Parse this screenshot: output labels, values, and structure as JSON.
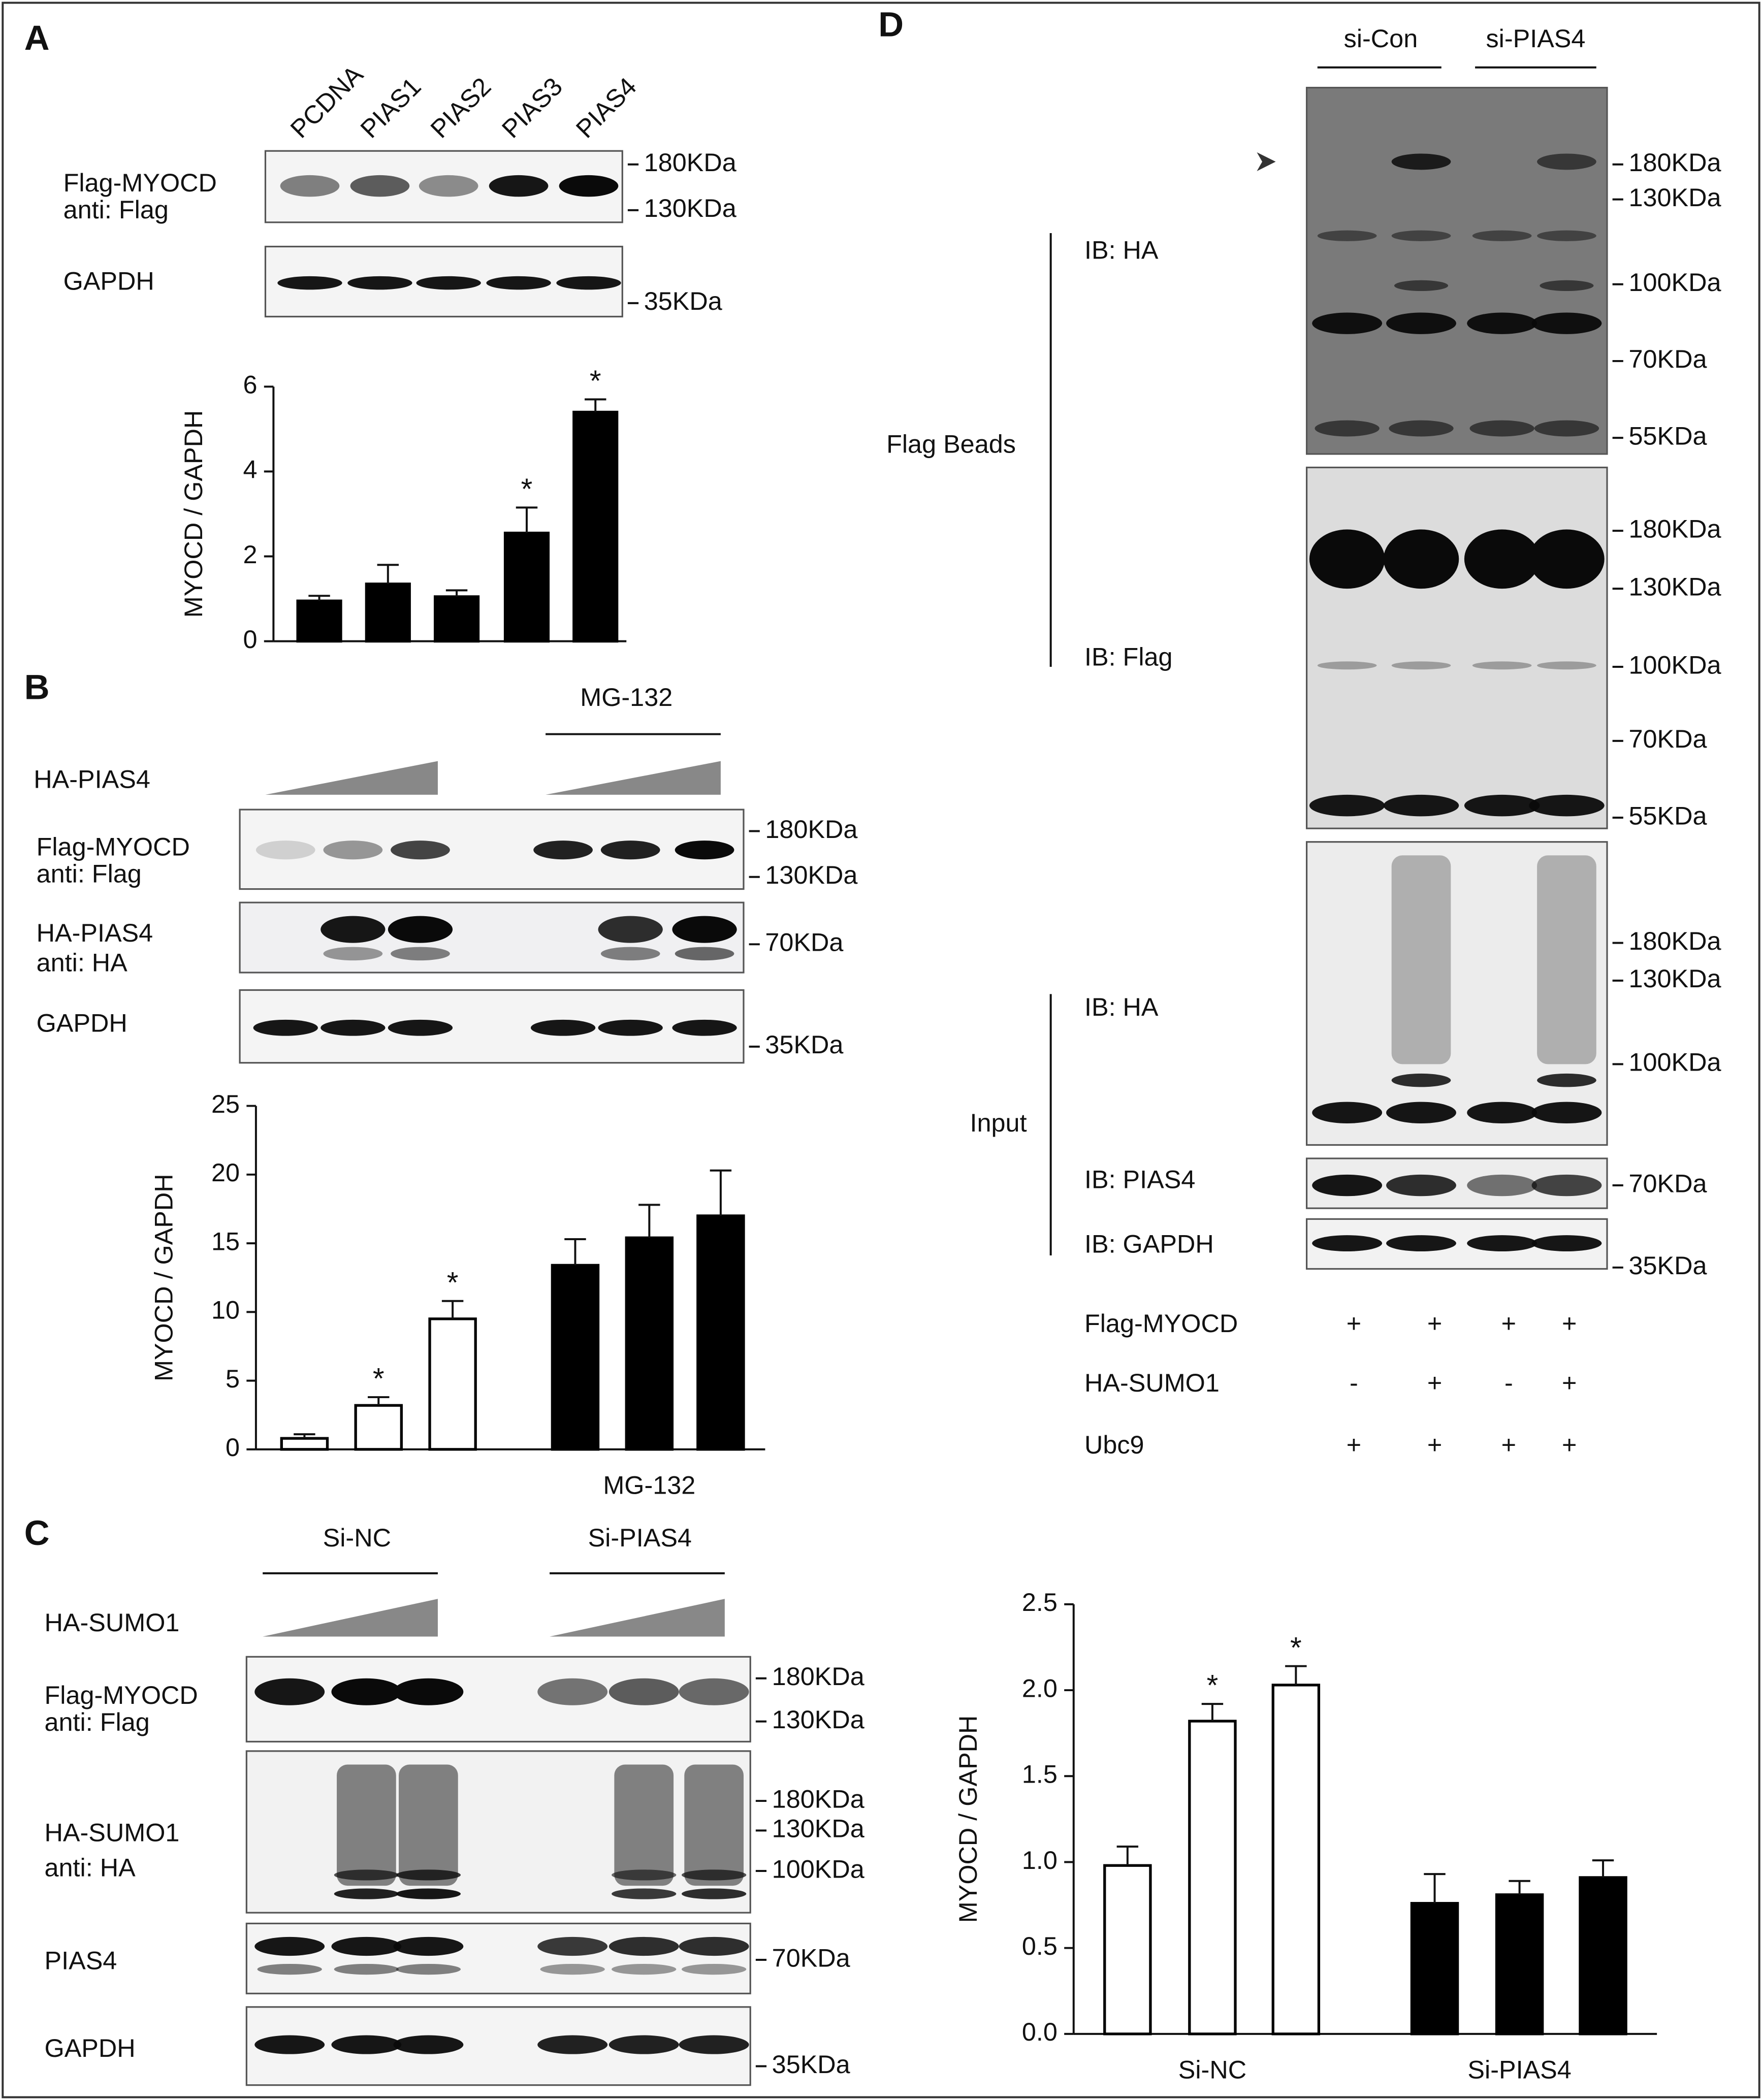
{
  "panel_labels": [
    "A",
    "B",
    "C",
    "D"
  ],
  "panel_a": {
    "lanes": [
      "PCDNA",
      "PIAS1",
      "PIAS2",
      "PIAS3",
      "PIAS4"
    ],
    "blots": [
      {
        "labels": [
          "Flag-MYOCD",
          "anti: Flag"
        ],
        "markers": [
          "180KDa",
          "130KDa"
        ]
      },
      {
        "labels": [
          "GAPDH"
        ],
        "markers": [
          "35KDa"
        ]
      }
    ]
  },
  "panel_b": {
    "treatment": "MG-132",
    "titration": "HA-PIAS4",
    "blots": [
      {
        "labels": [
          "Flag-MYOCD",
          "anti: Flag"
        ],
        "markers": [
          "180KDa",
          "130KDa"
        ]
      },
      {
        "labels": [
          "HA-PIAS4",
          "anti: HA"
        ],
        "markers": [
          "70KDa"
        ]
      },
      {
        "labels": [
          "GAPDH"
        ],
        "markers": [
          "35KDa"
        ]
      }
    ]
  },
  "panel_c": {
    "groups": [
      "Si-NC",
      "Si-PIAS4"
    ],
    "titration": "HA-SUMO1",
    "blots": [
      {
        "labels": [
          "Flag-MYOCD",
          "anti: Flag"
        ],
        "markers": [
          "180KDa",
          "130KDa"
        ]
      },
      {
        "labels": [
          "HA-SUMO1",
          "anti: HA"
        ],
        "markers": [
          "180KDa",
          "130KDa",
          "100KDa"
        ]
      },
      {
        "labels": [
          "PIAS4"
        ],
        "markers": [
          "70KDa"
        ]
      },
      {
        "labels": [
          "GAPDH"
        ],
        "markers": [
          "35KDa"
        ]
      }
    ]
  },
  "panel_d": {
    "groups": [
      "si-Con",
      "si-PIAS4"
    ],
    "sections": [
      "Flag Beads",
      "Input"
    ],
    "blots": [
      {
        "labels": [
          "IB: HA"
        ],
        "markers": [
          "180KDa",
          "130KDa",
          "100KDa",
          "70KDa",
          "55KDa"
        ]
      },
      {
        "labels": [
          "IB: Flag"
        ],
        "markers": [
          "180KDa",
          "130KDa",
          "100KDa",
          "70KDa",
          "55KDa"
        ]
      },
      {
        "labels": [
          "IB: HA"
        ],
        "markers": [
          "180KDa",
          "130KDa",
          "100KDa"
        ]
      },
      {
        "labels": [
          "IB: PIAS4"
        ],
        "markers": [
          "70KDa"
        ]
      },
      {
        "labels": [
          "IB: GAPDH"
        ],
        "markers": [
          "35KDa"
        ]
      }
    ],
    "conditions": [
      {
        "label": "Flag-MYOCD",
        "signs": [
          "+",
          "+",
          "+",
          "+"
        ]
      },
      {
        "label": "HA-SUMO1",
        "signs": [
          "-",
          "+",
          "-",
          "+"
        ]
      },
      {
        "label": "Ubc9",
        "signs": [
          "+",
          "+",
          "+",
          "+"
        ]
      }
    ]
  },
  "chart_data": [
    {
      "type": "bar",
      "y_label": "MYOCD / GAPDH",
      "values": [
        0.95,
        1.35,
        1.05,
        2.55,
        5.4
      ],
      "errors": [
        0.12,
        0.45,
        0.15,
        0.6,
        0.3
      ],
      "colors": [
        "#000000",
        "#000000",
        "#000000",
        "#000000",
        "#000000"
      ],
      "significant": [
        false,
        false,
        false,
        true,
        true
      ],
      "sig_mark": "*",
      "ylim": [
        0,
        6
      ],
      "yticks": [
        0,
        2,
        4,
        6
      ],
      "group_labels": []
    },
    {
      "type": "bar",
      "y_label": "MYOCD / GAPDH",
      "values": [
        0.8,
        3.2,
        9.5,
        13.4,
        15.4,
        17.0
      ],
      "errors": [
        0.3,
        0.6,
        1.3,
        1.9,
        2.4,
        3.3
      ],
      "colors": [
        "#ffffff",
        "#ffffff",
        "#ffffff",
        "#000000",
        "#000000",
        "#000000"
      ],
      "significant": [
        false,
        true,
        true,
        false,
        false,
        false
      ],
      "sig_mark": "*",
      "ylim": [
        0,
        25
      ],
      "yticks": [
        0,
        5,
        10,
        15,
        20,
        25
      ],
      "group_labels": [
        "MG-132"
      ]
    },
    {
      "type": "bar",
      "y_label": "MYOCD / GAPDH",
      "values": [
        0.98,
        1.82,
        2.03,
        0.76,
        0.81,
        0.91
      ],
      "errors": [
        0.11,
        0.1,
        0.11,
        0.17,
        0.08,
        0.1
      ],
      "colors": [
        "#ffffff",
        "#ffffff",
        "#ffffff",
        "#000000",
        "#000000",
        "#000000"
      ],
      "significant": [
        false,
        true,
        true,
        false,
        false,
        false
      ],
      "sig_mark": "*",
      "ylim": [
        0,
        2.5
      ],
      "yticks": [
        {
          "value": 0,
          "label": "0.0"
        },
        0.5,
        {
          "value": 1,
          "label": "1.0"
        },
        1.5,
        {
          "value": 2,
          "label": "2.0"
        },
        2.5
      ],
      "group_labels": [
        "Si-NC",
        "Si-PIAS4"
      ]
    }
  ]
}
